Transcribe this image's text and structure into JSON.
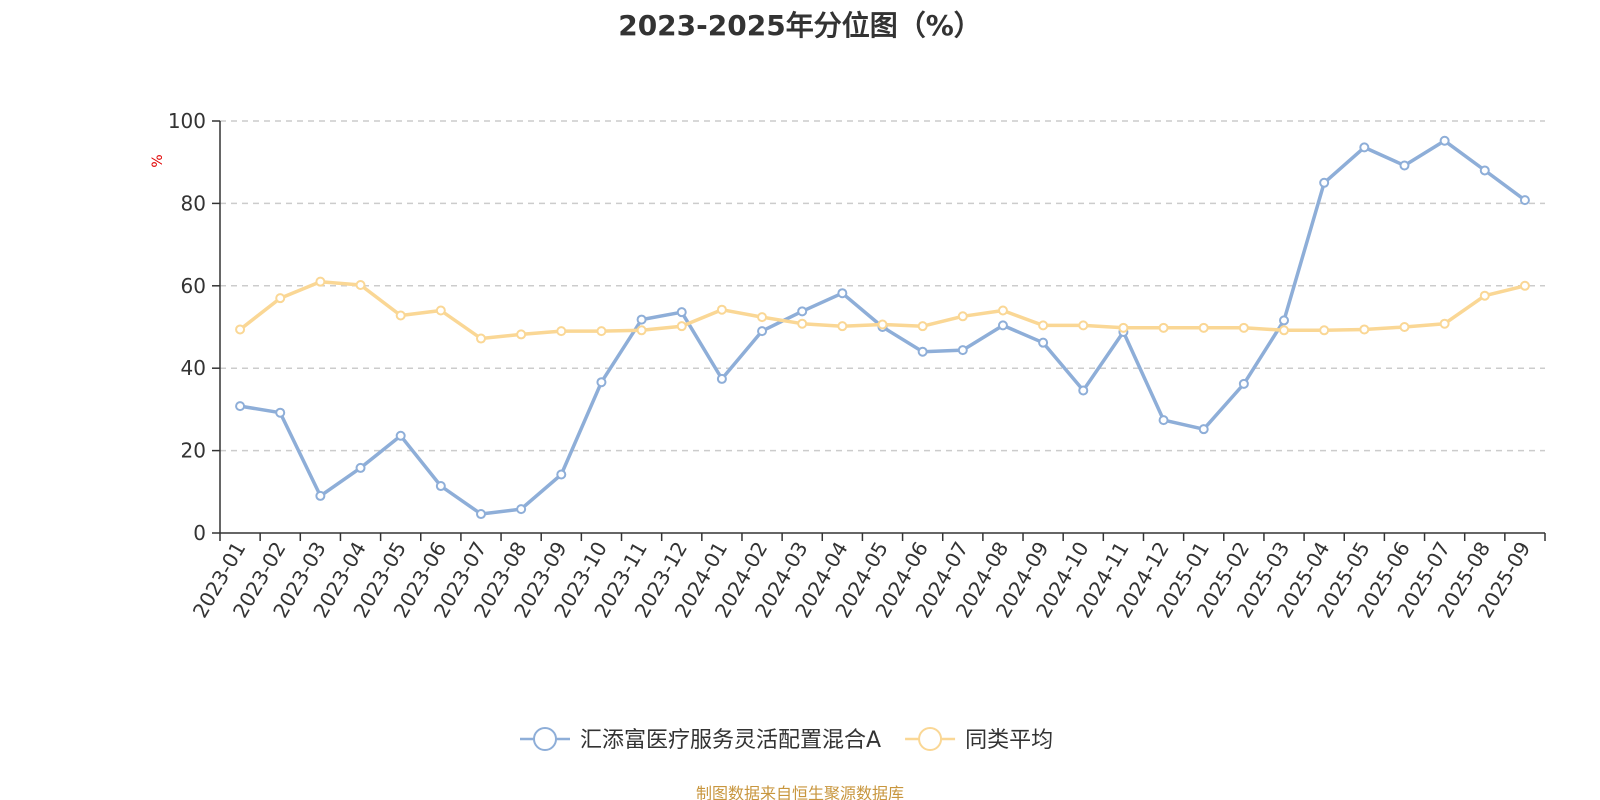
{
  "title": "2023-2025年分位图（%）",
  "source_note": "制图数据来自恒生聚源数据库",
  "chart_data": {
    "type": "line",
    "title": "2023-2025年分位图（%）",
    "ylabel": "%",
    "xlabel": "",
    "ylim": [
      0,
      100
    ],
    "yticks": [
      0,
      20,
      40,
      60,
      80,
      100
    ],
    "grid": true,
    "legend_position": "bottom-center",
    "categories": [
      "2023-01",
      "2023-02",
      "2023-03",
      "2023-04",
      "2023-05",
      "2023-06",
      "2023-07",
      "2023-08",
      "2023-09",
      "2023-10",
      "2023-11",
      "2023-12",
      "2024-01",
      "2024-02",
      "2024-03",
      "2024-04",
      "2024-05",
      "2024-06",
      "2024-07",
      "2024-08",
      "2024-09",
      "2024-10",
      "2024-11",
      "2024-12",
      "2025-01",
      "2025-02",
      "2025-03",
      "2025-04",
      "2025-05",
      "2025-06",
      "2025-07",
      "2025-08",
      "2025-09"
    ],
    "series": [
      {
        "name": "汇添富医疗服务灵活配置混合A",
        "color": "#8eaed8",
        "values": [
          30.8,
          29.2,
          9.0,
          15.8,
          23.6,
          11.4,
          4.6,
          5.8,
          14.2,
          36.6,
          51.8,
          53.6,
          37.4,
          49.0,
          53.8,
          58.2,
          50.0,
          44.0,
          44.4,
          50.4,
          46.2,
          34.6,
          48.8,
          27.4,
          25.2,
          36.2,
          51.6,
          85.0,
          93.6,
          89.2,
          95.2,
          88.0,
          80.8
        ]
      },
      {
        "name": "同类平均",
        "color": "#fad795",
        "values": [
          49.4,
          57.0,
          61.0,
          60.2,
          52.8,
          54.0,
          47.2,
          48.2,
          49.0,
          49.0,
          49.2,
          50.2,
          54.2,
          52.4,
          50.8,
          50.2,
          50.6,
          50.2,
          52.6,
          54.0,
          50.4,
          50.4,
          49.8,
          49.8,
          49.8,
          49.8,
          49.2,
          49.2,
          49.4,
          50.0,
          50.8,
          57.6,
          60.0
        ]
      }
    ]
  }
}
